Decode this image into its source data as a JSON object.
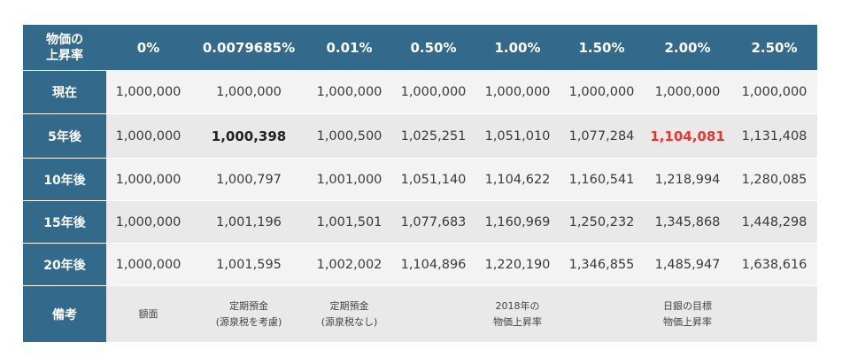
{
  "header": {
    "corner": [
      "物価の",
      "上昇率"
    ],
    "rates": [
      "0%",
      "0.0079685%",
      "0.01%",
      "0.50%",
      "1.00%",
      "1.50%",
      "2.00%",
      "2.50%"
    ]
  },
  "rows": [
    {
      "label": "現在",
      "values": [
        "1,000,000",
        "1,000,000",
        "1,000,000",
        "1,000,000",
        "1,000,000",
        "1,000,000",
        "1,000,000",
        "1,000,000"
      ]
    },
    {
      "label": "5年後",
      "values": [
        "1,000,000",
        "1,000,398",
        "1,000,500",
        "1,025,251",
        "1,051,010",
        "1,077,284",
        "1,104,081",
        "1,131,408"
      ]
    },
    {
      "label": "10年後",
      "values": [
        "1,000,000",
        "1,000,797",
        "1,001,000",
        "1,051,140",
        "1,104,622",
        "1,160,541",
        "1,218,994",
        "1,280,085"
      ]
    },
    {
      "label": "15年後",
      "values": [
        "1,000,000",
        "1,001,196",
        "1,001,501",
        "1,077,683",
        "1,160,969",
        "1,250,232",
        "1,345,868",
        "1,448,298"
      ]
    },
    {
      "label": "20年後",
      "values": [
        "1,000,000",
        "1,001,595",
        "1,002,002",
        "1,104,896",
        "1,220,190",
        "1,346,855",
        "1,485,947",
        "1,638,616"
      ]
    }
  ],
  "notes": {
    "label": "備考",
    "cells": [
      {
        "lines": [
          "額面"
        ]
      },
      {
        "lines": [
          "定期預金",
          "(源泉税を考慮)"
        ]
      },
      {
        "lines": [
          "定期預金",
          "(源泉税なし)"
        ]
      },
      {
        "lines": []
      },
      {
        "lines": [
          "2018年の",
          "物価上昇率"
        ]
      },
      {
        "lines": []
      },
      {
        "lines": [
          "日銀の目標",
          "物価上昇率"
        ]
      },
      {
        "lines": []
      }
    ]
  },
  "highlight_colors": {
    "header_bg": "#336a8b",
    "emphasis_red": "#e8382d"
  }
}
